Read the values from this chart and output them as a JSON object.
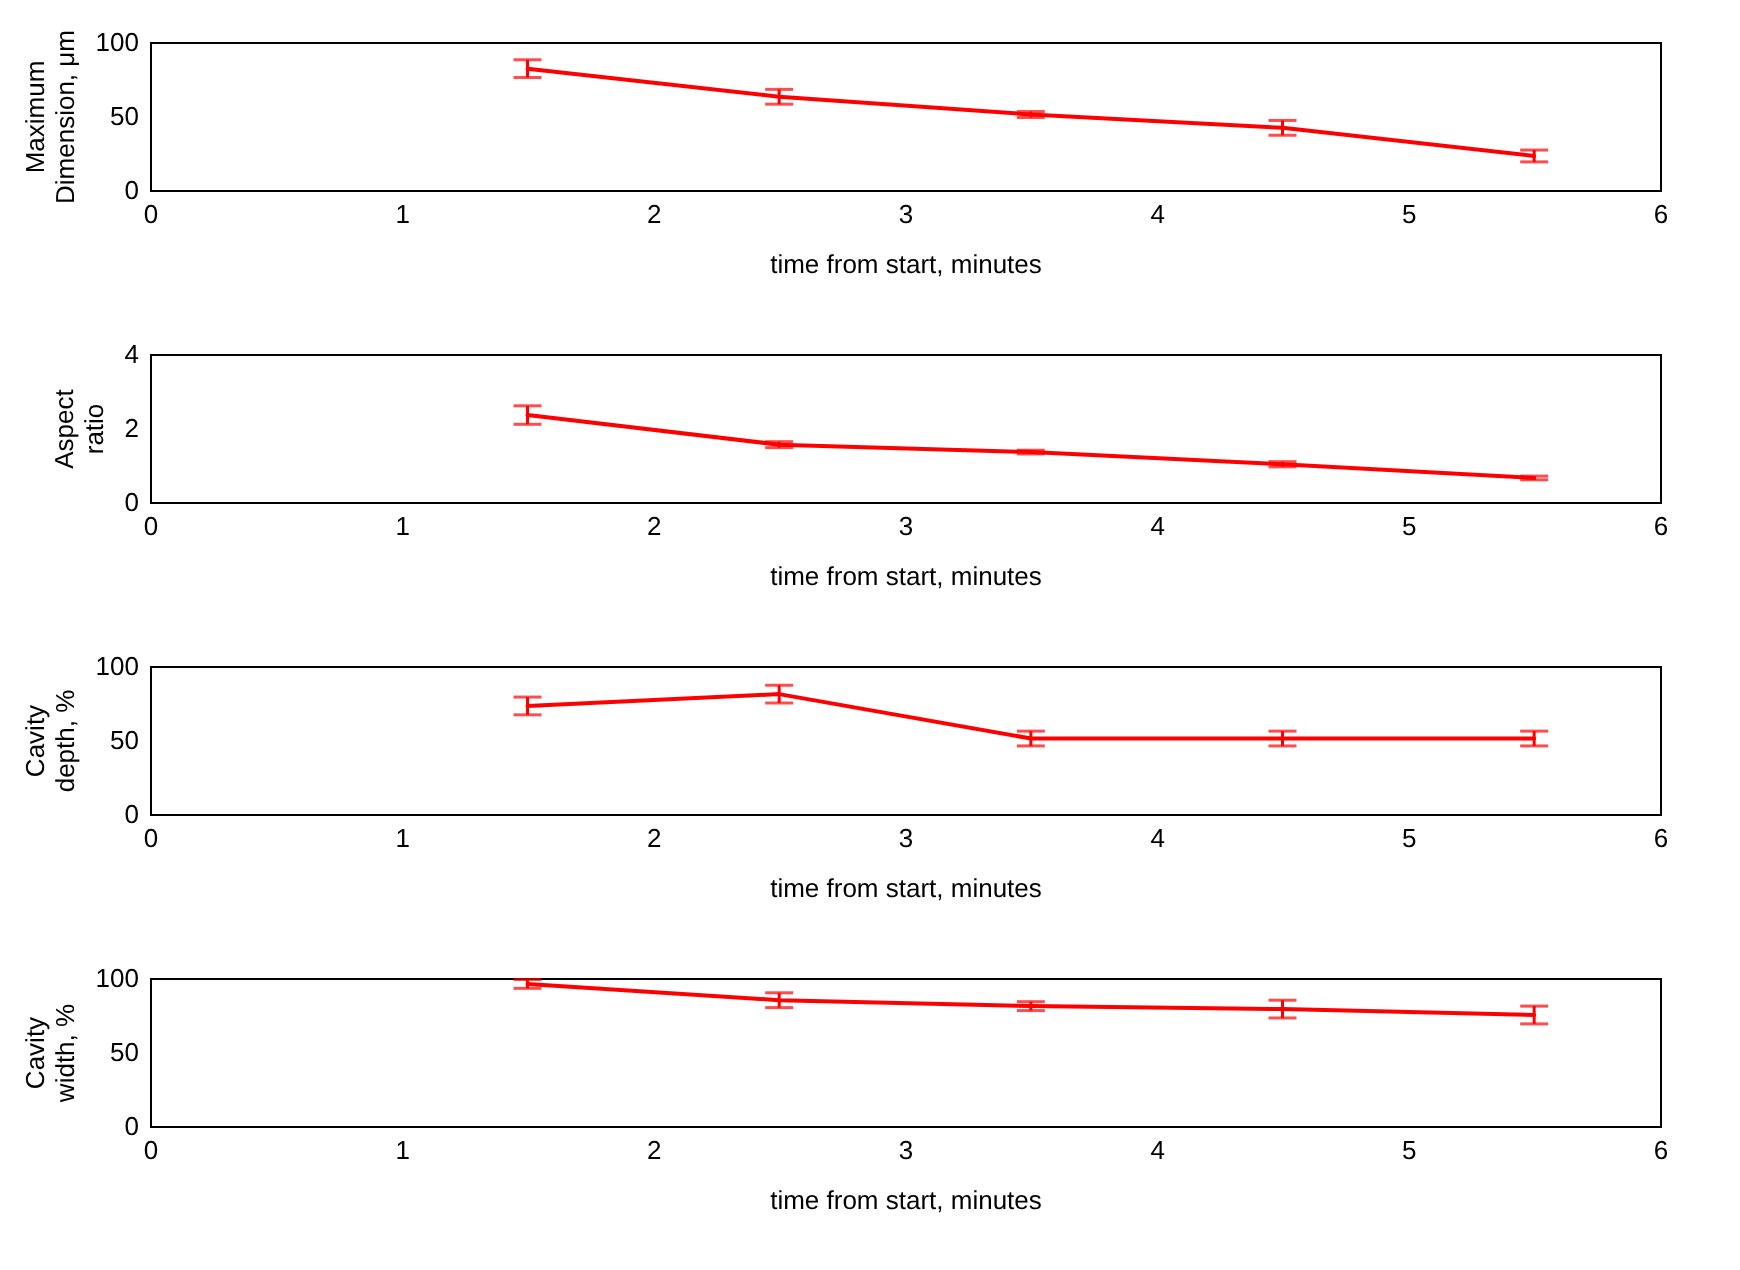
{
  "chart_data": [
    {
      "type": "line",
      "ylabel": "Maximum Dimension, μm",
      "xlabel": "time from start, minutes",
      "x": [
        1.5,
        2.5,
        3.5,
        4.5,
        5.5
      ],
      "series": [
        {
          "color": "#ff0000",
          "values": [
            82,
            63,
            51,
            42,
            23
          ],
          "errors": [
            6,
            5,
            2,
            5,
            4
          ]
        }
      ],
      "xlim": [
        0,
        6
      ],
      "xticks": [
        0,
        1,
        2,
        3,
        4,
        5,
        6
      ],
      "ylim": [
        0,
        100
      ],
      "yticks": [
        0,
        50,
        100
      ],
      "grid": false,
      "marker": "none",
      "line_style": "solid"
    },
    {
      "type": "line",
      "ylabel": "Aspect ratio",
      "xlabel": "time from start, minutes",
      "x": [
        1.5,
        2.5,
        3.5,
        4.5,
        5.5
      ],
      "series": [
        {
          "color": "#ff0000",
          "values": [
            2.35,
            1.55,
            1.35,
            1.02,
            0.65
          ],
          "errors": [
            0.25,
            0.08,
            0.05,
            0.07,
            0.05
          ]
        }
      ],
      "xlim": [
        0,
        6
      ],
      "xticks": [
        0,
        1,
        2,
        3,
        4,
        5,
        6
      ],
      "ylim": [
        0,
        4
      ],
      "yticks": [
        0,
        2,
        4
      ],
      "grid": false,
      "marker": "none",
      "line_style": "solid"
    },
    {
      "type": "line",
      "ylabel": "Cavity depth, %",
      "xlabel": "time from start, minutes",
      "x": [
        1.5,
        2.5,
        3.5,
        4.5,
        5.5
      ],
      "series": [
        {
          "color": "#ff0000",
          "values": [
            73,
            81,
            51,
            51,
            51
          ],
          "errors": [
            6,
            6,
            5,
            5,
            5
          ]
        }
      ],
      "xlim": [
        0,
        6
      ],
      "xticks": [
        0,
        1,
        2,
        3,
        4,
        5,
        6
      ],
      "ylim": [
        0,
        100
      ],
      "yticks": [
        0,
        50,
        100
      ],
      "grid": false,
      "marker": "none",
      "line_style": "solid"
    },
    {
      "type": "line",
      "ylabel": "Cavity width, %",
      "xlabel": "time from start, minutes",
      "x": [
        1.5,
        2.5,
        3.5,
        4.5,
        5.5
      ],
      "series": [
        {
          "color": "#ff0000",
          "values": [
            96,
            85,
            81,
            79,
            75
          ],
          "errors": [
            3,
            5,
            3,
            6,
            6
          ]
        }
      ],
      "xlim": [
        0,
        6
      ],
      "xticks": [
        0,
        1,
        2,
        3,
        4,
        5,
        6
      ],
      "ylim": [
        0,
        100
      ],
      "yticks": [
        0,
        50,
        100
      ],
      "grid": false,
      "marker": "none",
      "line_style": "solid"
    }
  ]
}
